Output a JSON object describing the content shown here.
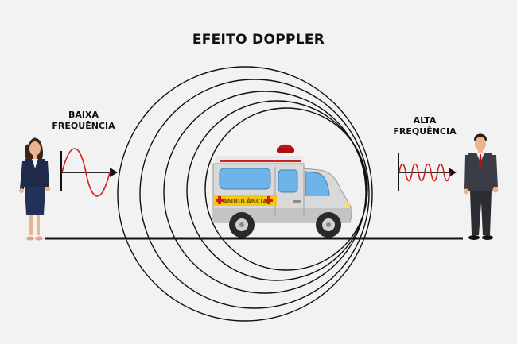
{
  "title": "EFEITO DOPPLER",
  "left_label": "BAIXA\nFREQUÊNCIA",
  "right_label": "ALTA\nFREQUÊNCIA",
  "ambulance_text": "AMBULÂNCIA",
  "colors": {
    "background": "#f2f2f2",
    "wave": "#d42020",
    "rings": "#111111",
    "ambulance_body": "#d9d9d9",
    "ambulance_stripe": "#f2c811",
    "siren": "#cc1111"
  }
}
